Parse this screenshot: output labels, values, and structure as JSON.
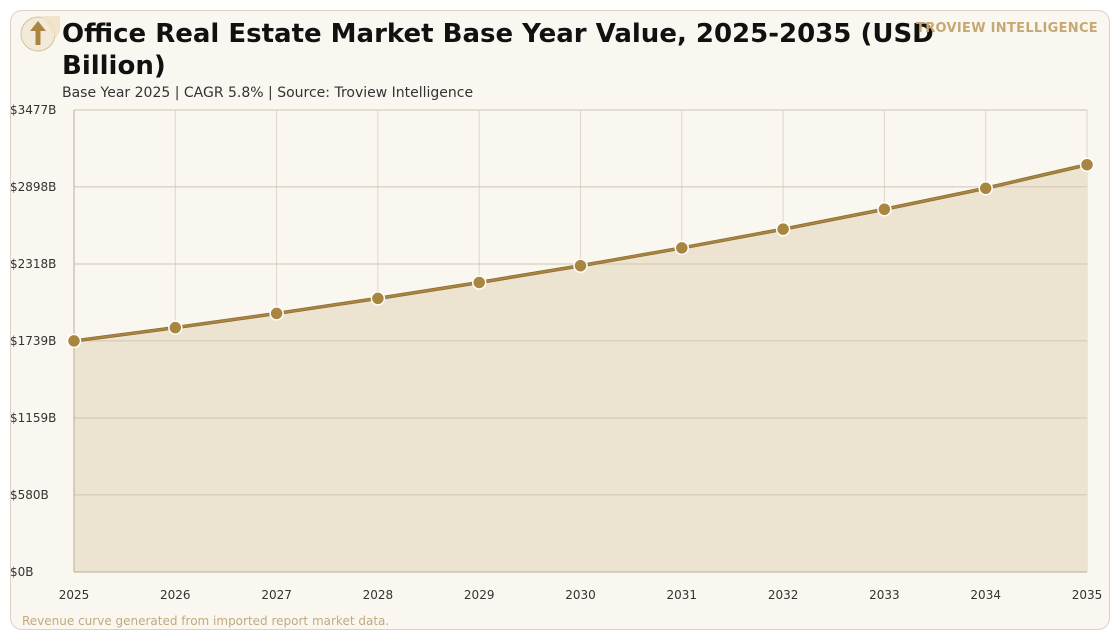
{
  "header": {
    "title": "Office Real Estate Market Base Year Value, 2025-2035 (USD Billion)",
    "subtitle": "Base Year 2025 | CAGR 5.8% | Source: Troview Intelligence",
    "brand": "TROVIEW INTELLIGENCE",
    "logo_icon": "upward-arrow-icon"
  },
  "footer": {
    "note": "Revenue curve generated from imported report market data."
  },
  "colors": {
    "background": "#faf7f0",
    "accent": "#a98640",
    "area_fill": "#ece3d1",
    "gridline": "#cfc4b0",
    "brand": "#c6a873"
  },
  "chart_data": {
    "type": "area",
    "title": "Office Real Estate Market Base Year Value, 2025-2035 (USD Billion)",
    "xlabel": "",
    "ylabel": "",
    "x": [
      "2025",
      "2026",
      "2027",
      "2028",
      "2029",
      "2030",
      "2031",
      "2032",
      "2033",
      "2034",
      "2035"
    ],
    "series": [
      {
        "values": [
          1739,
          1839,
          1946,
          2059,
          2179,
          2305,
          2439,
          2580,
          2730,
          2888,
          3065
        ]
      }
    ],
    "y_ticks": [
      "$0B",
      "$580B",
      "$1159B",
      "$1739B",
      "$2318B",
      "$2898B",
      "$3477B"
    ],
    "y_tick_values": [
      0,
      580,
      1159,
      1739,
      2318,
      2898,
      3477
    ],
    "ylim": [
      0,
      3477
    ],
    "grid": true,
    "markers": true,
    "legend": "none"
  }
}
